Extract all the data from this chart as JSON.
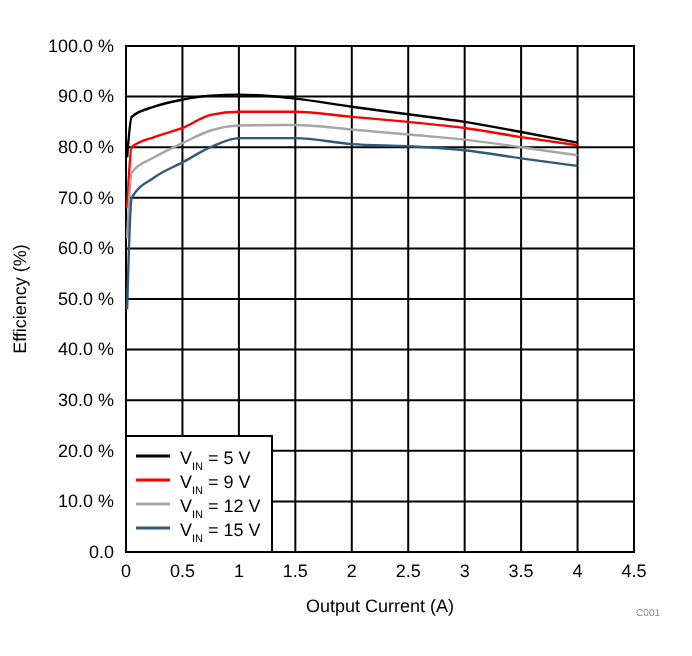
{
  "chart_data": {
    "type": "line",
    "xlabel": "Output Current (A)",
    "ylabel": "Efficiency (%)",
    "xlim": [
      0,
      4.5
    ],
    "xticks": [
      0,
      0.5,
      1,
      1.5,
      2,
      2.5,
      3,
      3.5,
      4,
      4.5
    ],
    "ylim": [
      0,
      100
    ],
    "yticks": [
      {
        "value": 0,
        "label": "0.0"
      },
      {
        "value": 10,
        "label": "10.0 %"
      },
      {
        "value": 20,
        "label": "20.0 %"
      },
      {
        "value": 30,
        "label": "30.0 %"
      },
      {
        "value": 40,
        "label": "40.0 %"
      },
      {
        "value": 50,
        "label": "50.0 %"
      },
      {
        "value": 60,
        "label": "60.0 %"
      },
      {
        "value": 70,
        "label": "70.0 %"
      },
      {
        "value": 80,
        "label": "80.0 %"
      },
      {
        "value": 90,
        "label": "90.0 %"
      },
      {
        "value": 100,
        "label": "100.0 %"
      }
    ],
    "grid": true,
    "legend": "bottom left",
    "line_style": "solid",
    "marker": "none",
    "x": [
      0.01,
      0.05,
      0.25,
      0.5,
      0.75,
      1,
      1.5,
      2,
      2.5,
      3,
      3.5,
      4
    ],
    "series": [
      {
        "name": "V$_{IN}$ = 5 V",
        "color": "#000000",
        "values": [
          78,
          86,
          88,
          89.4,
          90.2,
          90.4,
          89.6,
          88,
          86.5,
          85,
          83,
          80.9
        ]
      },
      {
        "name": "V$_{IN}$ = 9 V",
        "color": "#ff0000",
        "values": [
          68,
          80,
          82,
          83.8,
          86.4,
          87,
          87,
          86,
          85,
          83.8,
          82,
          80.4
        ]
      },
      {
        "name": "V$_{IN}$ = 12 V",
        "color": "#a6a6a6",
        "values": [
          62,
          75,
          78,
          80.8,
          83.3,
          84.3,
          84.4,
          83.5,
          82.5,
          81.5,
          80,
          78.4
        ]
      },
      {
        "name": "V$_{IN}$ = 15 V",
        "color": "#2e5b78",
        "values": [
          48,
          70,
          74,
          77,
          80,
          81.8,
          81.8,
          80.6,
          80.2,
          79.4,
          77.8,
          76.3
        ]
      }
    ],
    "annotations": [
      "C001"
    ]
  }
}
